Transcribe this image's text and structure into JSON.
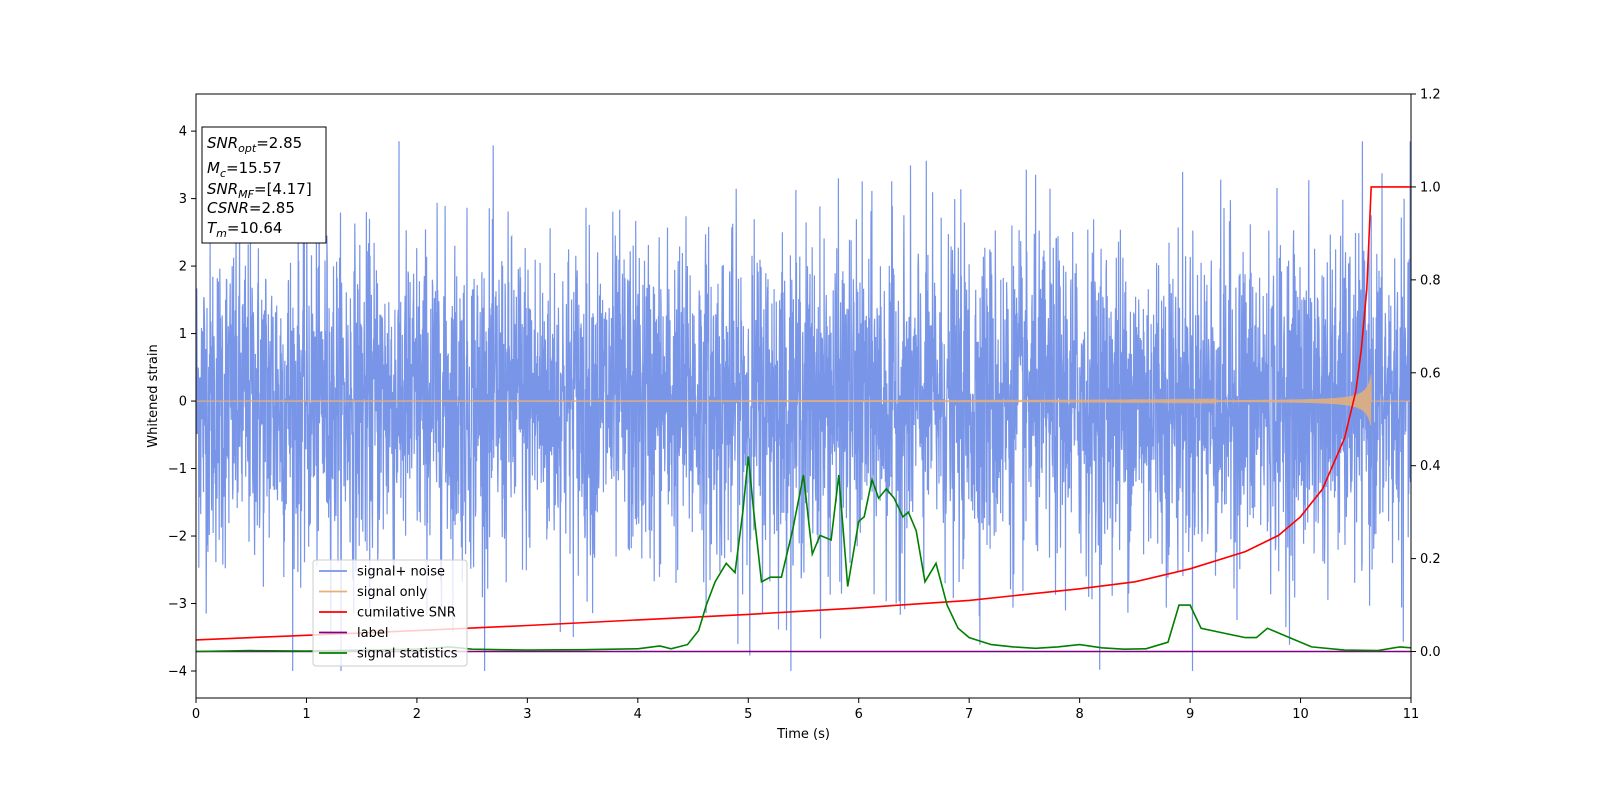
{
  "chart_data": {
    "type": "line",
    "xlabel": "Time (s)",
    "ylabel": "Whitened strain",
    "xlim": [
      0,
      11
    ],
    "ylim_left": [
      -4.4,
      4.55
    ],
    "ylim_right": [
      -0.1,
      1.2
    ],
    "x_ticks": [
      0,
      1,
      2,
      3,
      4,
      5,
      6,
      7,
      8,
      9,
      10,
      11
    ],
    "y_left_ticks": [
      -4,
      -3,
      -2,
      -1,
      0,
      1,
      2,
      3,
      4
    ],
    "y_right_ticks": [
      0.0,
      0.2,
      0.4,
      0.6,
      0.8,
      1.0,
      1.2
    ],
    "legend_position": "lower-left",
    "annotation": {
      "lines": [
        {
          "base": "SNR",
          "sub": "opt",
          "value": "=2.85"
        },
        {
          "base": "M",
          "sub": "c",
          "value": "=15.57"
        },
        {
          "base": "SNR",
          "sub": "MF",
          "value": "=[4.17]"
        },
        {
          "base": "CSNR",
          "sub": "",
          "value": "=2.85"
        },
        {
          "base": "T",
          "sub": "m",
          "value": "=10.64"
        }
      ]
    },
    "series": [
      {
        "name": "signal+ noise",
        "axis": "left",
        "color": "#7895e8",
        "kind": "noise",
        "std": 1.2,
        "range": [
          -4.0,
          3.85
        ]
      },
      {
        "name": "signal only",
        "axis": "left",
        "color": "#e8b078",
        "kind": "chirp",
        "merger_time": 10.64,
        "peak_amplitude": 0.55
      },
      {
        "name": "cumilative SNR",
        "axis": "right",
        "color": "#ff0000",
        "x": [
          0,
          1,
          2,
          3,
          4,
          5,
          6,
          7,
          8,
          8.5,
          9,
          9.5,
          9.8,
          10,
          10.2,
          10.4,
          10.5,
          10.55,
          10.6,
          10.64,
          10.7,
          11
        ],
        "y": [
          0.025,
          0.035,
          0.045,
          0.056,
          0.068,
          0.08,
          0.094,
          0.11,
          0.135,
          0.15,
          0.178,
          0.215,
          0.25,
          0.29,
          0.35,
          0.46,
          0.56,
          0.65,
          0.78,
          1.0,
          1.0,
          1.0
        ]
      },
      {
        "name": "label",
        "axis": "right",
        "color": "#800080",
        "x": [
          0,
          11
        ],
        "y": [
          0.0,
          0.0
        ]
      },
      {
        "name": "signal statistics",
        "axis": "right",
        "color": "#008000",
        "x": [
          0,
          0.5,
          1,
          1.5,
          2,
          2.3,
          2.5,
          3,
          3.5,
          4,
          4.2,
          4.3,
          4.45,
          4.55,
          4.62,
          4.7,
          4.8,
          4.88,
          4.95,
          5.0,
          5.05,
          5.12,
          5.2,
          5.3,
          5.4,
          5.5,
          5.58,
          5.65,
          5.75,
          5.82,
          5.9,
          6.0,
          6.05,
          6.12,
          6.18,
          6.25,
          6.32,
          6.4,
          6.45,
          6.52,
          6.6,
          6.7,
          6.8,
          6.9,
          7.0,
          7.2,
          7.4,
          7.6,
          7.8,
          8.0,
          8.2,
          8.4,
          8.6,
          8.8,
          8.9,
          9.0,
          9.1,
          9.3,
          9.5,
          9.6,
          9.7,
          9.9,
          10.1,
          10.4,
          10.7,
          10.9,
          11.0
        ],
        "y": [
          0.0,
          0.002,
          0.001,
          0.003,
          0.005,
          0.01,
          0.005,
          0.003,
          0.004,
          0.006,
          0.012,
          0.006,
          0.015,
          0.045,
          0.1,
          0.15,
          0.19,
          0.17,
          0.3,
          0.42,
          0.3,
          0.15,
          0.16,
          0.16,
          0.26,
          0.38,
          0.21,
          0.25,
          0.24,
          0.38,
          0.14,
          0.28,
          0.29,
          0.37,
          0.33,
          0.35,
          0.33,
          0.29,
          0.3,
          0.26,
          0.15,
          0.19,
          0.1,
          0.05,
          0.03,
          0.015,
          0.01,
          0.007,
          0.01,
          0.015,
          0.008,
          0.005,
          0.006,
          0.02,
          0.1,
          0.1,
          0.05,
          0.04,
          0.03,
          0.03,
          0.05,
          0.03,
          0.01,
          0.003,
          0.002,
          0.01,
          0.008
        ]
      }
    ]
  }
}
